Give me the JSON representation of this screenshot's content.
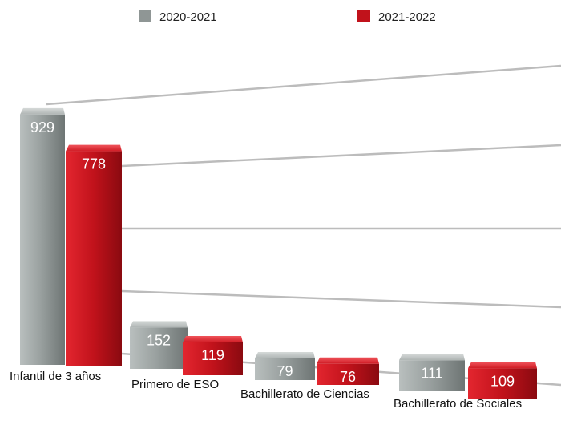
{
  "chart_data": {
    "type": "bar",
    "title": "",
    "xlabel": "",
    "ylabel": "",
    "categories": [
      "Infantil de 3 años",
      "Primero de ESO",
      "Bachillerato de Ciencias",
      "Bachillerato de Sociales"
    ],
    "series": [
      {
        "name": "2020-2021",
        "values": [
          929,
          152,
          79,
          111
        ],
        "color": "#8f9695"
      },
      {
        "name": "2021-2022",
        "values": [
          778,
          119,
          76,
          109
        ],
        "color": "#c1121b"
      }
    ],
    "ylim": [
      0,
      1000
    ],
    "grid": true,
    "legend_position": "top",
    "style": "3d-perspective"
  }
}
